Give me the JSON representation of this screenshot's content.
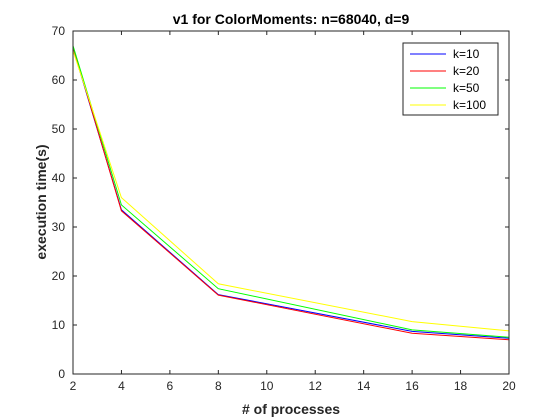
{
  "chart_data": {
    "type": "line",
    "title": "v1 for ColorMoments: n=68040, d=9",
    "xlabel": "# of processes",
    "ylabel": "execution time(s)",
    "x": [
      2,
      4,
      8,
      16,
      20
    ],
    "xlim": [
      2,
      20
    ],
    "ylim": [
      0,
      70
    ],
    "xticks": [
      2,
      4,
      6,
      8,
      10,
      12,
      14,
      16,
      18,
      20
    ],
    "yticks": [
      0,
      10,
      20,
      30,
      40,
      50,
      60,
      70
    ],
    "grid": false,
    "legend_position": "top-right",
    "series": [
      {
        "name": "k=10",
        "color": "#0000ff",
        "values": [
          66.5,
          33.5,
          16.2,
          8.7,
          7.3
        ]
      },
      {
        "name": "k=20",
        "color": "#ff0000",
        "values": [
          66.8,
          33.3,
          16.1,
          8.3,
          7.0
        ]
      },
      {
        "name": "k=50",
        "color": "#00ff00",
        "values": [
          67.0,
          34.5,
          17.4,
          9.0,
          7.5
        ]
      },
      {
        "name": "k=100",
        "color": "#ffff00",
        "values": [
          66.0,
          36.0,
          18.4,
          10.7,
          8.8
        ]
      }
    ]
  }
}
